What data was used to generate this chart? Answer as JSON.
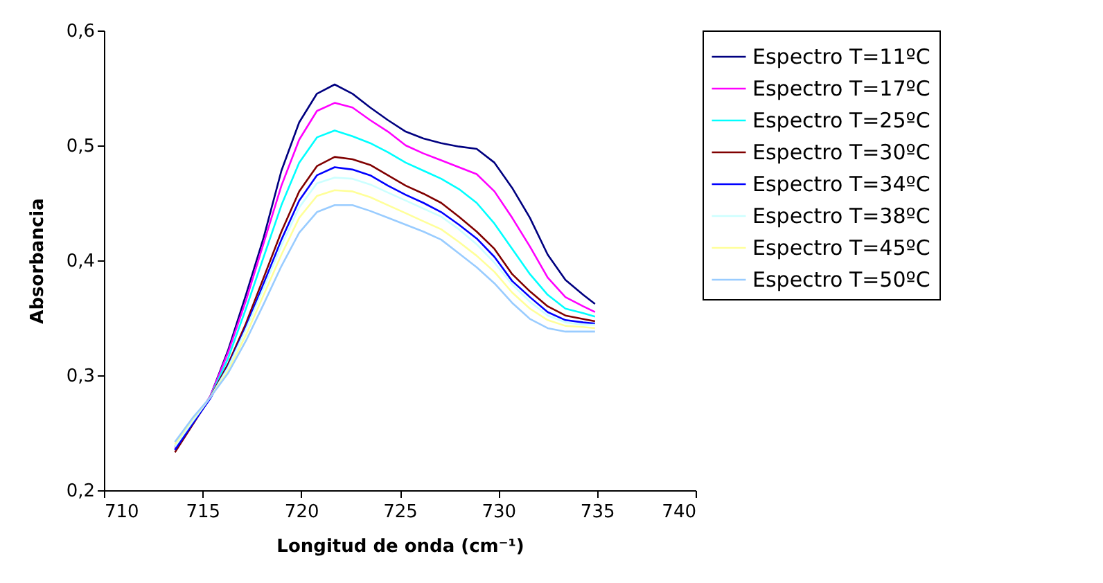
{
  "chart_data": {
    "type": "line",
    "xlabel": "Longitud de onda (cm⁻¹)",
    "ylabel": "Absorbancia",
    "x": [
      713.6,
      714.5,
      715.4,
      716.3,
      717.2,
      718.1,
      719,
      719.9,
      720.8,
      721.7,
      722.6,
      723.5,
      724.4,
      725.3,
      726.2,
      727.1,
      728,
      728.9,
      729.8,
      730.7,
      731.6,
      732.5,
      733.4,
      734.3,
      734.9
    ],
    "xlim": [
      710,
      740
    ],
    "xticks": [
      710,
      715,
      720,
      725,
      730,
      735,
      740
    ],
    "ylim": [
      0.2,
      0.6
    ],
    "yticks": [
      {
        "value": 0.2,
        "label": "0,2"
      },
      {
        "value": 0.3,
        "label": "0,3"
      },
      {
        "value": 0.4,
        "label": "0,4"
      },
      {
        "value": 0.5,
        "label": "0,5"
      },
      {
        "value": 0.6,
        "label": "0,6"
      }
    ],
    "grid": false,
    "legend": "right",
    "marker": "none",
    "line_style": "solid",
    "series": [
      {
        "name": "Espectro T=11ºC",
        "color": "#000080",
        "values": [
          0.238,
          0.258,
          0.282,
          0.322,
          0.37,
          0.42,
          0.478,
          0.52,
          0.545,
          0.553,
          0.545,
          0.533,
          0.522,
          0.512,
          0.506,
          0.502,
          0.499,
          0.497,
          0.485,
          0.463,
          0.437,
          0.405,
          0.383,
          0.37,
          0.362
        ]
      },
      {
        "name": "Espectro T=17ºC",
        "color": "#ff00ff",
        "values": [
          0.236,
          0.258,
          0.282,
          0.32,
          0.365,
          0.415,
          0.465,
          0.505,
          0.53,
          0.537,
          0.533,
          0.522,
          0.512,
          0.5,
          0.493,
          0.487,
          0.481,
          0.475,
          0.46,
          0.437,
          0.412,
          0.385,
          0.368,
          0.36,
          0.355
        ]
      },
      {
        "name": "Espectro T=25ºC",
        "color": "#00ffff",
        "values": [
          0.235,
          0.258,
          0.281,
          0.315,
          0.358,
          0.403,
          0.448,
          0.485,
          0.507,
          0.513,
          0.508,
          0.502,
          0.494,
          0.485,
          0.478,
          0.471,
          0.462,
          0.45,
          0.432,
          0.41,
          0.388,
          0.37,
          0.358,
          0.354,
          0.351
        ]
      },
      {
        "name": "Espectro T=30ºC",
        "color": "#800000",
        "values": [
          0.233,
          0.257,
          0.281,
          0.31,
          0.345,
          0.385,
          0.425,
          0.46,
          0.482,
          0.49,
          0.488,
          0.483,
          0.474,
          0.465,
          0.458,
          0.45,
          0.438,
          0.425,
          0.41,
          0.388,
          0.373,
          0.36,
          0.352,
          0.349,
          0.347
        ]
      },
      {
        "name": "Espectro T=34ºC",
        "color": "#0000ff",
        "values": [
          0.235,
          0.258,
          0.28,
          0.308,
          0.342,
          0.38,
          0.418,
          0.452,
          0.474,
          0.481,
          0.479,
          0.474,
          0.465,
          0.457,
          0.45,
          0.442,
          0.431,
          0.419,
          0.403,
          0.382,
          0.368,
          0.355,
          0.348,
          0.346,
          0.345
        ]
      },
      {
        "name": "Espectro T=38ºC",
        "color": "#ccffff",
        "values": [
          0.238,
          0.26,
          0.281,
          0.307,
          0.34,
          0.376,
          0.413,
          0.446,
          0.467,
          0.472,
          0.471,
          0.466,
          0.459,
          0.452,
          0.445,
          0.438,
          0.427,
          0.414,
          0.398,
          0.379,
          0.364,
          0.352,
          0.346,
          0.344,
          0.344
        ]
      },
      {
        "name": "Espectro T=45ºC",
        "color": "#ffff99",
        "values": [
          0.24,
          0.262,
          0.281,
          0.304,
          0.335,
          0.37,
          0.405,
          0.437,
          0.456,
          0.461,
          0.46,
          0.455,
          0.448,
          0.441,
          0.434,
          0.427,
          0.416,
          0.404,
          0.39,
          0.372,
          0.358,
          0.348,
          0.343,
          0.342,
          0.341
        ]
      },
      {
        "name": "Espectro T=50ºC",
        "color": "#99ccff",
        "values": [
          0.242,
          0.263,
          0.281,
          0.302,
          0.33,
          0.362,
          0.395,
          0.424,
          0.442,
          0.448,
          0.448,
          0.443,
          0.437,
          0.431,
          0.425,
          0.418,
          0.406,
          0.394,
          0.38,
          0.363,
          0.349,
          0.341,
          0.338,
          0.338,
          0.338
        ]
      }
    ]
  }
}
